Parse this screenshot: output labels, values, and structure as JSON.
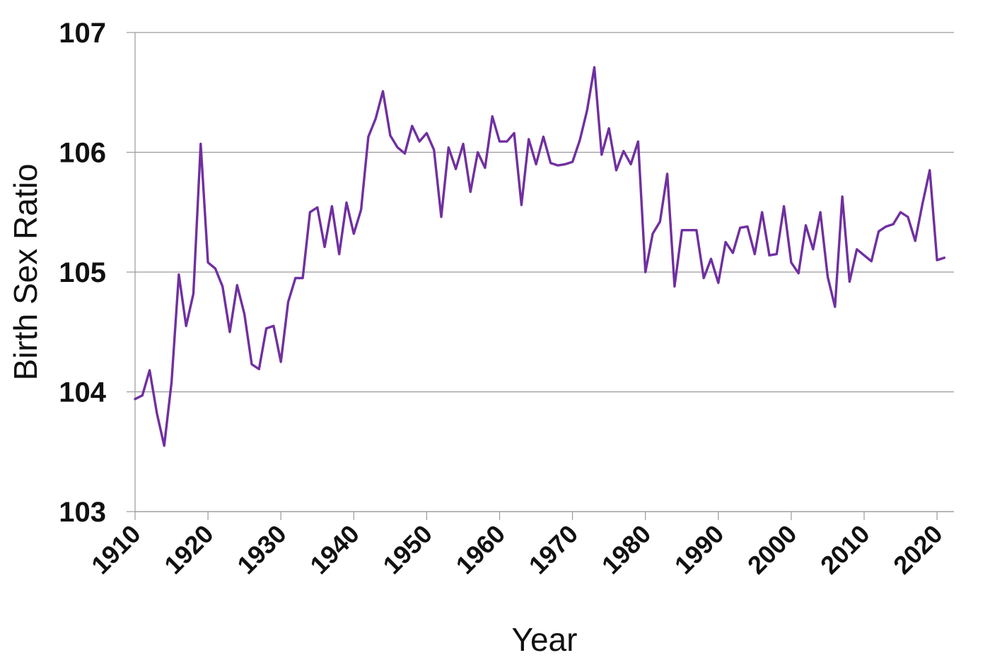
{
  "chart_data": {
    "type": "line",
    "title": "",
    "xlabel": "Year",
    "ylabel": "Birth Sex Ratio",
    "xlim": [
      1910,
      2022
    ],
    "ylim": [
      103,
      107
    ],
    "yticks": [
      103,
      104,
      105,
      106,
      107
    ],
    "xticks": [
      1910,
      1920,
      1930,
      1940,
      1950,
      1960,
      1970,
      1980,
      1990,
      2000,
      2010,
      2020
    ],
    "grid": "horizontal",
    "line_color": "#7030A0",
    "series": [
      {
        "x": [
          1910,
          1911,
          1912,
          1913,
          1914,
          1915,
          1916,
          1917,
          1918,
          1919,
          1920,
          1921,
          1922,
          1923,
          1924,
          1925,
          1926,
          1927,
          1928,
          1929,
          1930,
          1931,
          1932,
          1933,
          1934,
          1935,
          1936,
          1937,
          1938,
          1939,
          1940,
          1941,
          1942,
          1943,
          1944,
          1945,
          1946,
          1947,
          1948,
          1949,
          1950,
          1951,
          1952,
          1953,
          1954,
          1955,
          1956,
          1957,
          1958,
          1959,
          1960,
          1961,
          1962,
          1963,
          1964,
          1965,
          1966,
          1967,
          1968,
          1969,
          1970,
          1971,
          1972,
          1973,
          1974,
          1975,
          1976,
          1977,
          1978,
          1979,
          1980,
          1981,
          1982,
          1983,
          1984,
          1985,
          1986,
          1987,
          1988,
          1989,
          1990,
          1991,
          1992,
          1993,
          1994,
          1995,
          1996,
          1997,
          1998,
          1999,
          2000,
          2001,
          2002,
          2003,
          2004,
          2005,
          2006,
          2007,
          2008,
          2009,
          2010,
          2011,
          2012,
          2013,
          2014,
          2015,
          2016,
          2017,
          2018,
          2019,
          2020,
          2021
        ],
        "values": [
          103.94,
          103.97,
          104.18,
          103.82,
          103.55,
          104.08,
          104.98,
          104.55,
          104.82,
          106.07,
          105.08,
          105.03,
          104.88,
          104.5,
          104.89,
          104.65,
          104.23,
          104.19,
          104.53,
          104.55,
          104.25,
          104.75,
          104.95,
          104.95,
          105.5,
          105.54,
          105.21,
          105.55,
          105.15,
          105.58,
          105.32,
          105.52,
          106.13,
          106.28,
          106.51,
          106.14,
          106.04,
          105.99,
          106.22,
          106.09,
          106.16,
          106.02,
          105.46,
          106.04,
          105.86,
          106.07,
          105.67,
          106.0,
          105.87,
          106.3,
          106.09,
          106.09,
          106.16,
          105.56,
          106.11,
          105.9,
          106.13,
          105.91,
          105.89,
          105.9,
          105.92,
          106.1,
          106.35,
          106.71,
          105.98,
          106.2,
          105.85,
          106.01,
          105.9,
          106.09,
          105.0,
          105.32,
          105.42,
          105.82,
          104.88,
          105.35,
          105.35,
          105.35,
          104.95,
          105.11,
          104.91,
          105.25,
          105.16,
          105.37,
          105.38,
          105.15,
          105.5,
          105.14,
          105.15,
          105.55,
          105.08,
          104.99,
          105.39,
          105.19,
          105.5,
          104.96,
          104.71,
          105.63,
          104.92,
          105.19,
          105.14,
          105.09,
          105.34,
          105.38,
          105.4,
          105.5,
          105.46,
          105.26,
          105.57,
          105.85,
          105.1,
          105.12
        ]
      }
    ]
  }
}
